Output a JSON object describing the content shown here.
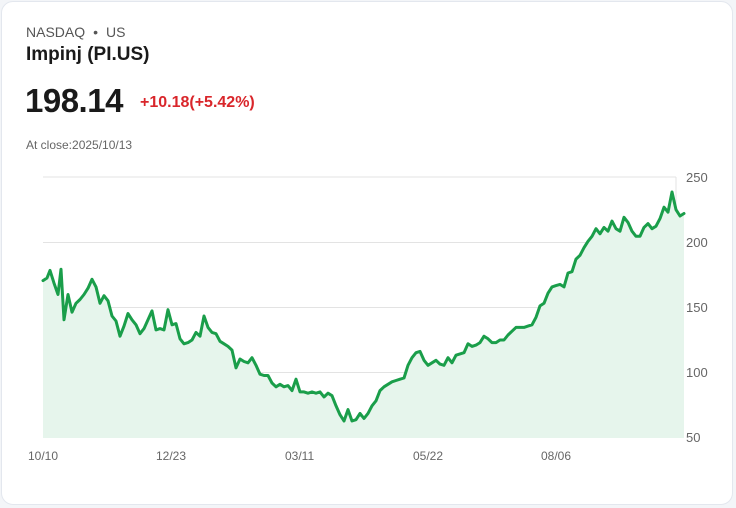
{
  "header": {
    "exchange": "NASDAQ",
    "separator": "•",
    "region": "US",
    "title": "Impinj (PI.US)",
    "price": "198.14",
    "change": "+10.18(+5.42%)",
    "close_label": "At close:2025/10/13"
  },
  "colors": {
    "line": "#1a9e4a",
    "fill": "#e6f5ec",
    "negative": "#d9262b"
  },
  "chart_data": {
    "type": "area",
    "title": "Impinj (PI.US)",
    "xlabel": "",
    "ylabel": "",
    "ylim": [
      50,
      250
    ],
    "y_ticks": [
      "250",
      "200",
      "150",
      "100",
      "50"
    ],
    "x_ticks": [
      "10/10",
      "12/23",
      "03/11",
      "05/22",
      "08/06"
    ],
    "grid": true,
    "y_axis_position": "right",
    "points": [
      [
        43,
        201
      ],
      [
        47,
        199
      ],
      [
        50,
        193
      ],
      [
        54,
        203
      ],
      [
        58,
        212
      ],
      [
        61,
        192
      ],
      [
        64,
        232
      ],
      [
        68,
        212
      ],
      [
        72,
        226
      ],
      [
        76,
        219
      ],
      [
        80,
        216
      ],
      [
        84,
        212
      ],
      [
        88,
        207
      ],
      [
        92,
        200
      ],
      [
        96,
        206
      ],
      [
        100,
        219
      ],
      [
        104,
        213
      ],
      [
        108,
        217
      ],
      [
        112,
        229
      ],
      [
        116,
        233
      ],
      [
        120,
        245
      ],
      [
        124,
        237
      ],
      [
        128,
        227
      ],
      [
        132,
        232
      ],
      [
        136,
        236
      ],
      [
        140,
        243
      ],
      [
        144,
        239
      ],
      [
        148,
        232
      ],
      [
        152,
        225
      ],
      [
        156,
        240
      ],
      [
        160,
        239
      ],
      [
        164,
        240
      ],
      [
        168,
        224
      ],
      [
        172,
        236
      ],
      [
        176,
        235
      ],
      [
        180,
        247
      ],
      [
        184,
        251
      ],
      [
        188,
        250
      ],
      [
        192,
        248
      ],
      [
        196,
        242
      ],
      [
        200,
        245
      ],
      [
        204,
        229
      ],
      [
        208,
        238
      ],
      [
        212,
        242
      ],
      [
        216,
        243
      ],
      [
        220,
        249
      ],
      [
        224,
        251
      ],
      [
        228,
        253
      ],
      [
        232,
        256
      ],
      [
        236,
        270
      ],
      [
        240,
        263
      ],
      [
        244,
        265
      ],
      [
        248,
        266
      ],
      [
        252,
        262
      ],
      [
        256,
        268
      ],
      [
        260,
        275
      ],
      [
        264,
        276
      ],
      [
        268,
        276
      ],
      [
        272,
        282
      ],
      [
        276,
        285
      ],
      [
        280,
        283
      ],
      [
        284,
        285
      ],
      [
        288,
        284
      ],
      [
        292,
        288
      ],
      [
        296,
        279
      ],
      [
        300,
        289
      ],
      [
        304,
        289
      ],
      [
        308,
        290
      ],
      [
        312,
        289
      ],
      [
        316,
        290
      ],
      [
        320,
        289
      ],
      [
        324,
        293
      ],
      [
        328,
        290
      ],
      [
        332,
        292
      ],
      [
        336,
        300
      ],
      [
        340,
        307
      ],
      [
        344,
        312
      ],
      [
        348,
        303
      ],
      [
        352,
        312
      ],
      [
        356,
        311
      ],
      [
        360,
        306
      ],
      [
        364,
        310
      ],
      [
        368,
        306
      ],
      [
        372,
        300
      ],
      [
        376,
        296
      ],
      [
        380,
        288
      ],
      [
        384,
        285
      ],
      [
        388,
        283
      ],
      [
        392,
        281
      ],
      [
        396,
        280
      ],
      [
        400,
        279
      ],
      [
        404,
        278
      ],
      [
        408,
        268
      ],
      [
        412,
        262
      ],
      [
        416,
        258
      ],
      [
        420,
        257
      ],
      [
        424,
        264
      ],
      [
        428,
        268
      ],
      [
        432,
        266
      ],
      [
        436,
        264
      ],
      [
        440,
        267
      ],
      [
        444,
        268
      ],
      [
        448,
        262
      ],
      [
        452,
        266
      ],
      [
        456,
        260
      ],
      [
        460,
        259
      ],
      [
        464,
        258
      ],
      [
        468,
        251
      ],
      [
        472,
        253
      ],
      [
        476,
        252
      ],
      [
        480,
        250
      ],
      [
        484,
        245
      ],
      [
        488,
        247
      ],
      [
        492,
        250
      ],
      [
        496,
        250
      ],
      [
        500,
        248
      ],
      [
        504,
        248
      ],
      [
        508,
        244
      ],
      [
        512,
        241
      ],
      [
        516,
        238
      ],
      [
        520,
        238
      ],
      [
        524,
        238
      ],
      [
        528,
        237
      ],
      [
        532,
        236
      ],
      [
        536,
        230
      ],
      [
        540,
        221
      ],
      [
        544,
        219
      ],
      [
        548,
        211
      ],
      [
        552,
        206
      ],
      [
        556,
        205
      ],
      [
        560,
        204
      ],
      [
        564,
        206
      ],
      [
        568,
        195
      ],
      [
        572,
        194
      ],
      [
        576,
        184
      ],
      [
        580,
        181
      ],
      [
        584,
        175
      ],
      [
        588,
        170
      ],
      [
        592,
        166
      ],
      [
        596,
        160
      ],
      [
        600,
        164
      ],
      [
        604,
        159
      ],
      [
        608,
        162
      ],
      [
        612,
        154
      ],
      [
        616,
        160
      ],
      [
        620,
        162
      ],
      [
        624,
        151
      ],
      [
        628,
        155
      ],
      [
        632,
        162
      ],
      [
        636,
        166
      ],
      [
        640,
        166
      ],
      [
        644,
        159
      ],
      [
        648,
        156
      ],
      [
        652,
        160
      ],
      [
        656,
        158
      ],
      [
        660,
        152
      ],
      [
        664,
        143
      ],
      [
        668,
        147
      ],
      [
        672,
        131
      ],
      [
        676,
        145
      ],
      [
        680,
        150
      ],
      [
        684,
        148
      ]
    ]
  }
}
